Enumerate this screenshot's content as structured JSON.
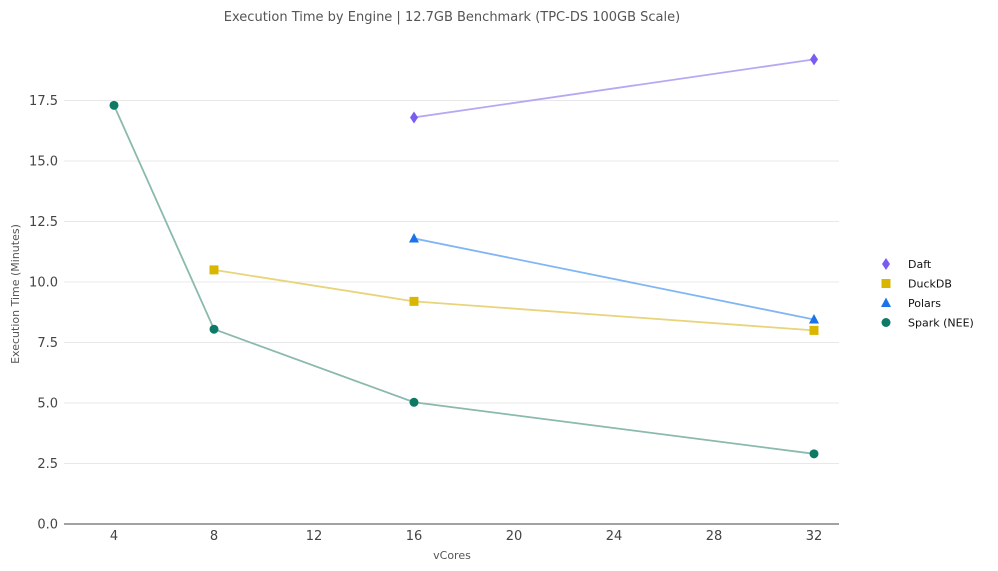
{
  "chart_data": {
    "type": "line",
    "title": "Execution Time by Engine | 12.7GB Benchmark (TPC-DS 100GB Scale)",
    "xlabel": "vCores",
    "ylabel": "Execution Time (Minutes)",
    "xlim": [
      2,
      33
    ],
    "ylim": [
      0,
      20
    ],
    "xticks": [
      4,
      8,
      12,
      16,
      20,
      24,
      28,
      32
    ],
    "xtick_labels": [
      "4",
      "8",
      "12",
      "16",
      "20",
      "24",
      "28",
      "32"
    ],
    "yticks": [
      0,
      2.5,
      5,
      7.5,
      10,
      12.5,
      15,
      17.5
    ],
    "ytick_labels": [
      "0.0",
      "2.5",
      "5.0",
      "7.5",
      "10.0",
      "12.5",
      "15.0",
      "17.5"
    ],
    "grid": true,
    "legend_position": "right",
    "series": [
      {
        "name": "Daft",
        "marker": "diamond",
        "color": "#7b5cf0",
        "line_color": "#b8a8f4",
        "x": [
          16,
          32
        ],
        "y": [
          16.8,
          19.2
        ]
      },
      {
        "name": "DuckDB",
        "marker": "square",
        "color": "#d9b700",
        "line_color": "#e8d47a",
        "x": [
          8,
          16,
          32
        ],
        "y": [
          10.5,
          9.2,
          8.0
        ]
      },
      {
        "name": "Polars",
        "marker": "triangle",
        "color": "#1a73e8",
        "line_color": "#80b6f5",
        "x": [
          16,
          32
        ],
        "y": [
          11.8,
          8.45
        ]
      },
      {
        "name": "Spark (NEE)",
        "marker": "circle",
        "color": "#0e7a66",
        "line_color": "#8ab9ad",
        "x": [
          4,
          8,
          16,
          32
        ],
        "y": [
          17.3,
          8.05,
          5.03,
          2.9
        ]
      }
    ]
  }
}
